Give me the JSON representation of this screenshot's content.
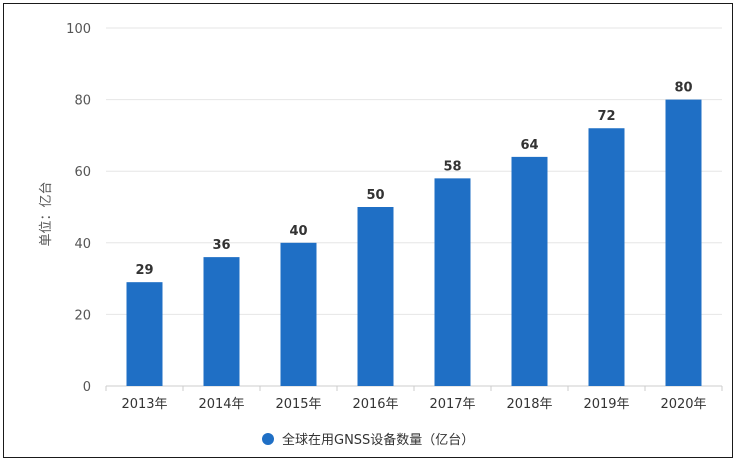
{
  "chart_data": {
    "type": "bar",
    "categories": [
      "2013年",
      "2014年",
      "2015年",
      "2016年",
      "2017年",
      "2018年",
      "2019年",
      "2020年"
    ],
    "values": [
      29,
      36,
      40,
      50,
      58,
      64,
      72,
      80
    ],
    "series": [
      {
        "name": "全球在用GNSS设备数量（亿台）",
        "values": [
          29,
          36,
          40,
          50,
          58,
          64,
          72,
          80
        ]
      }
    ],
    "ylabel": "单位：亿台",
    "xlabel": "",
    "ylim": [
      0,
      100
    ],
    "yticks": [
      0,
      20,
      40,
      60,
      80,
      100
    ],
    "grid": true,
    "legend_position": "bottom",
    "bar_color": "#1f6fc5"
  }
}
